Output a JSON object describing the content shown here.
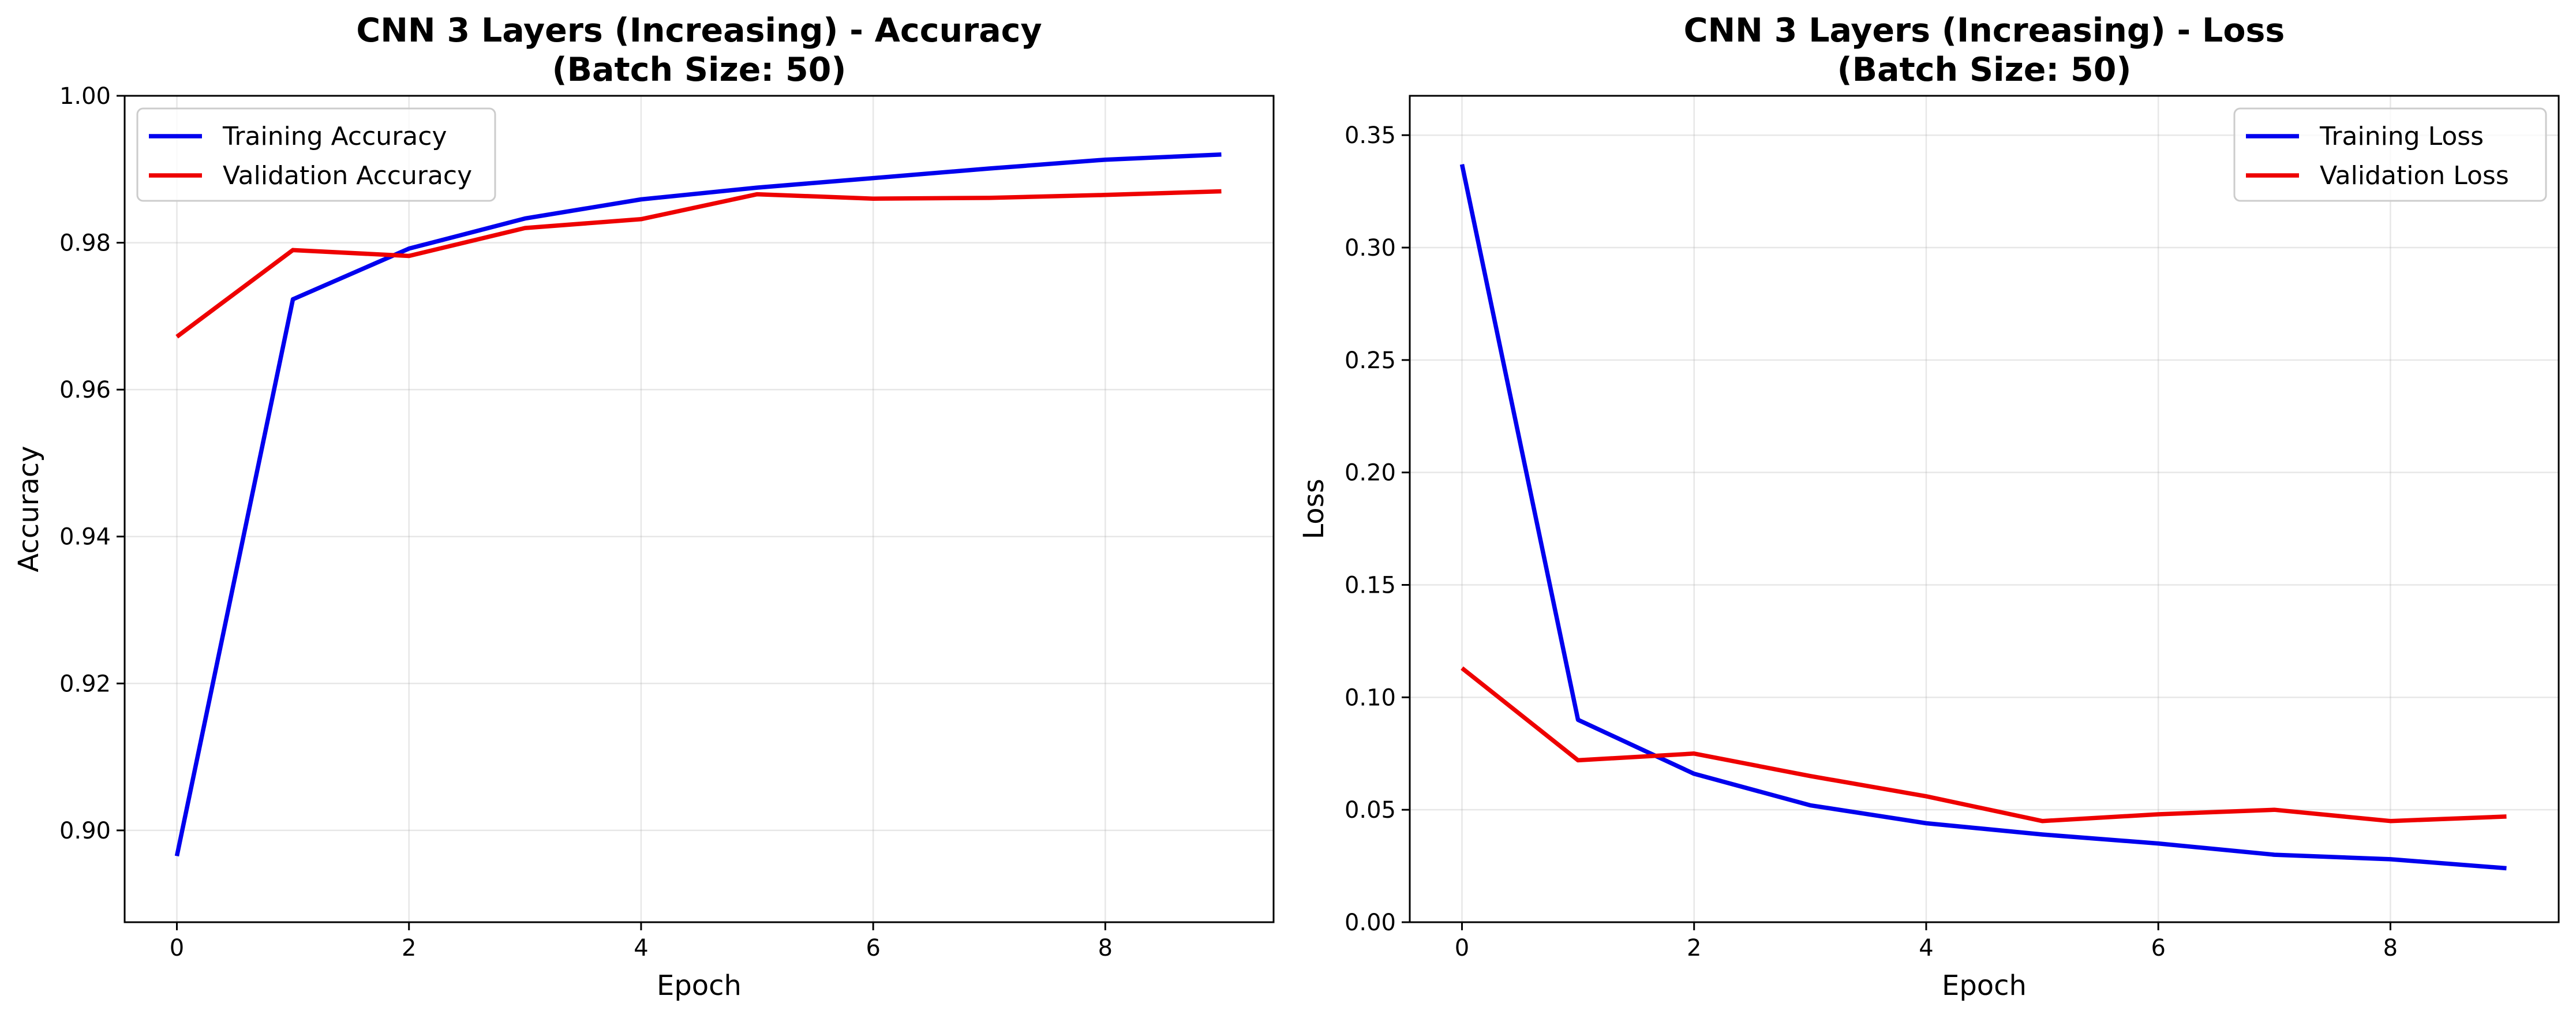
{
  "chart_data": [
    {
      "type": "line",
      "title": [
        "CNN 3 Layers (Increasing) - Accuracy",
        "(Batch Size: 50)"
      ],
      "xlabel": "Epoch",
      "ylabel": "Accuracy",
      "x": [
        0,
        1,
        2,
        3,
        4,
        5,
        6,
        7,
        8,
        9
      ],
      "xlim": [
        -0.45,
        9.45
      ],
      "ylim": [
        0.8875,
        1.0
      ],
      "xticks": [
        0,
        2,
        4,
        6,
        8
      ],
      "xtick_labels": [
        "0",
        "2",
        "4",
        "6",
        "8"
      ],
      "yticks": [
        0.9,
        0.92,
        0.94,
        0.96,
        0.98,
        1.0
      ],
      "ytick_labels": [
        "0.90",
        "0.92",
        "0.94",
        "0.96",
        "0.98",
        "1.00"
      ],
      "grid": true,
      "legend_position": "upper-left",
      "series": [
        {
          "name": "Training Accuracy",
          "color": "#0000ee",
          "values": [
            0.8965,
            0.9723,
            0.9792,
            0.9833,
            0.9859,
            0.9875,
            0.9888,
            0.9901,
            0.9913,
            0.992
          ]
        },
        {
          "name": "Validation Accuracy",
          "color": "#ee0000",
          "values": [
            0.9672,
            0.979,
            0.9782,
            0.982,
            0.9832,
            0.9866,
            0.986,
            0.9861,
            0.9865,
            0.987
          ]
        }
      ]
    },
    {
      "type": "line",
      "title": [
        "CNN 3 Layers (Increasing) - Loss",
        "(Batch Size: 50)"
      ],
      "xlabel": "Epoch",
      "ylabel": "Loss",
      "x": [
        0,
        1,
        2,
        3,
        4,
        5,
        6,
        7,
        8,
        9
      ],
      "xlim": [
        -0.45,
        9.45
      ],
      "ylim": [
        0.0,
        0.3675
      ],
      "xticks": [
        0,
        2,
        4,
        6,
        8
      ],
      "xtick_labels": [
        "0",
        "2",
        "4",
        "6",
        "8"
      ],
      "yticks": [
        0.0,
        0.05,
        0.1,
        0.15,
        0.2,
        0.25,
        0.3,
        0.35
      ],
      "ytick_labels": [
        "0.00",
        "0.05",
        "0.10",
        "0.15",
        "0.20",
        "0.25",
        "0.30",
        "0.35"
      ],
      "grid": true,
      "legend_position": "upper-right",
      "series": [
        {
          "name": "Training Loss",
          "color": "#0000ee",
          "values": [
            0.337,
            0.09,
            0.066,
            0.052,
            0.044,
            0.039,
            0.035,
            0.03,
            0.028,
            0.024
          ]
        },
        {
          "name": "Validation Loss",
          "color": "#ee0000",
          "values": [
            0.113,
            0.072,
            0.075,
            0.065,
            0.056,
            0.045,
            0.048,
            0.05,
            0.045,
            0.047
          ]
        }
      ]
    }
  ]
}
